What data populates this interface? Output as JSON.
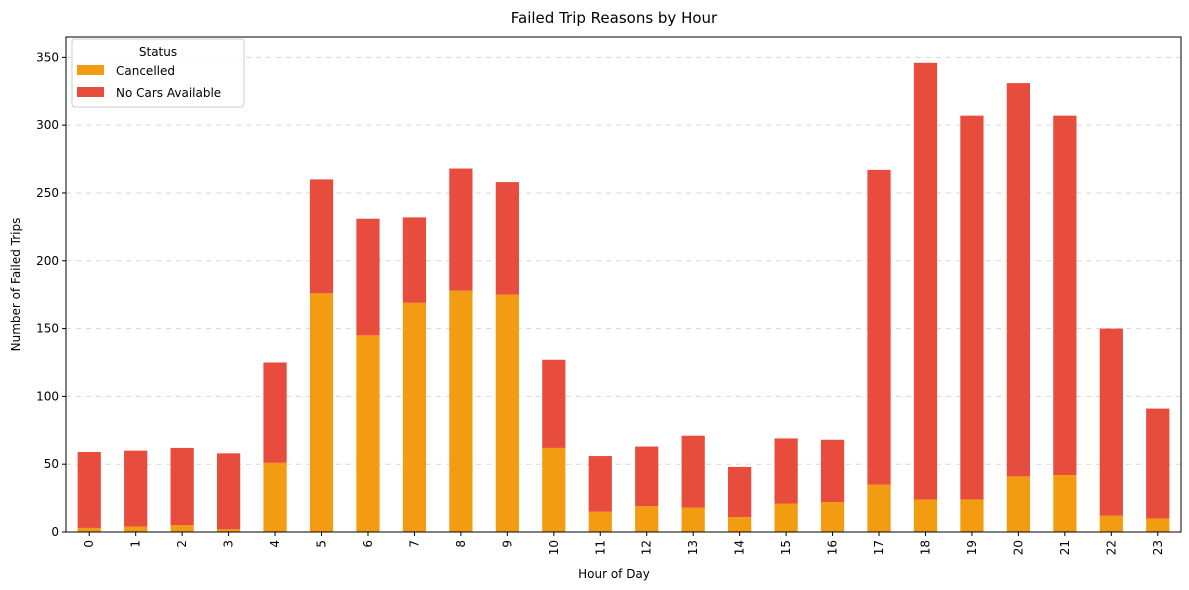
{
  "chart_data": {
    "type": "bar",
    "stacked": true,
    "title": "Failed Trip Reasons by Hour",
    "xlabel": "Hour of Day",
    "ylabel": "Number of Failed Trips",
    "categories": [
      "0",
      "1",
      "2",
      "3",
      "4",
      "5",
      "6",
      "7",
      "8",
      "9",
      "10",
      "11",
      "12",
      "13",
      "14",
      "15",
      "16",
      "17",
      "18",
      "19",
      "20",
      "21",
      "22",
      "23"
    ],
    "series": [
      {
        "name": "Cancelled",
        "color": "#f39c12",
        "values": [
          3,
          4,
          5,
          2,
          51,
          176,
          145,
          169,
          178,
          175,
          62,
          15,
          19,
          18,
          11,
          21,
          22,
          35,
          24,
          24,
          41,
          42,
          12,
          10
        ]
      },
      {
        "name": "No Cars Available",
        "color": "#e74c3c",
        "values": [
          56,
          56,
          57,
          56,
          74,
          84,
          86,
          63,
          90,
          83,
          65,
          41,
          44,
          53,
          37,
          48,
          46,
          232,
          322,
          283,
          290,
          265,
          138,
          81
        ]
      }
    ],
    "ylim": [
      0,
      365
    ],
    "yticks": [
      0,
      50,
      100,
      150,
      200,
      250,
      300,
      350
    ],
    "grid": "y-dashed",
    "legend": {
      "title": "Status",
      "position": "top-left"
    }
  }
}
